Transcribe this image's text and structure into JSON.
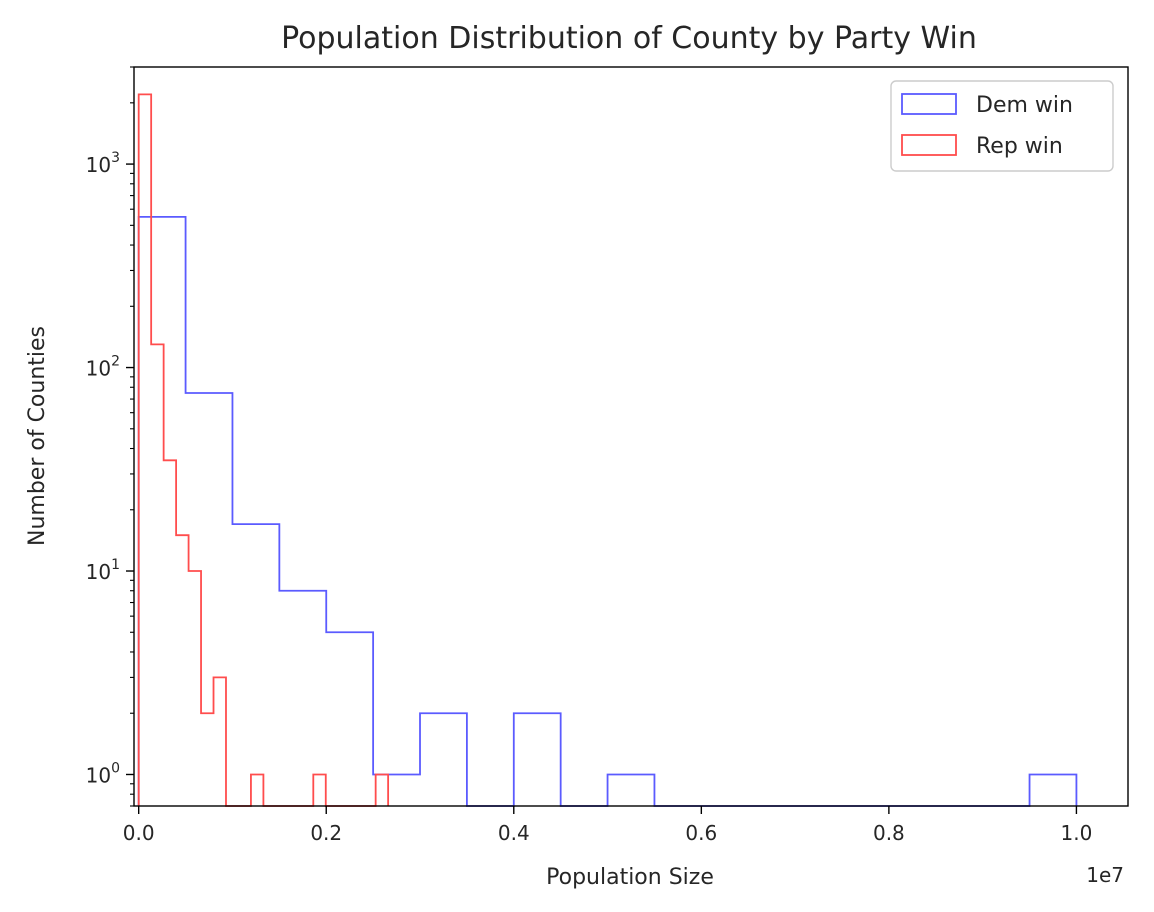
{
  "chart_data": {
    "type": "histogram",
    "title": "Population Distribution of County by Party Win",
    "xlabel": "Population Size",
    "ylabel": "Number of Counties",
    "x_offset_label": "1e7",
    "x_scale_factor": 10000000,
    "xlim": [
      -50000,
      10550000
    ],
    "ylim": [
      0.7,
      3000
    ],
    "yscale": "log",
    "grid": false,
    "legend_position": "top-right",
    "x_ticks": [
      0,
      2000000,
      4000000,
      6000000,
      8000000,
      10000000
    ],
    "x_tick_labels": [
      "0.0",
      "0.2",
      "0.4",
      "0.6",
      "0.8",
      "1.0"
    ],
    "y_ticks": [
      {
        "value": 1,
        "base": "10",
        "exp": "0"
      },
      {
        "value": 10,
        "base": "10",
        "exp": "1"
      },
      {
        "value": 100,
        "base": "10",
        "exp": "2"
      },
      {
        "value": 1000,
        "base": "10",
        "exp": "3"
      }
    ],
    "series": [
      {
        "name": "Dem win",
        "color": "#5b5bff",
        "bin_edges": [
          0,
          500000,
          1000000,
          1500000,
          2000000,
          2500000,
          3000000,
          3500000,
          4000000,
          4500000,
          5000000,
          5500000,
          6000000,
          6500000,
          7000000,
          7500000,
          8000000,
          8500000,
          9000000,
          9500000,
          10000000
        ],
        "counts": [
          550,
          75,
          17,
          8,
          5,
          1,
          2,
          0,
          2,
          0,
          1,
          0,
          0,
          0,
          0,
          0,
          0,
          0,
          0,
          1
        ]
      },
      {
        "name": "Rep win",
        "color": "#ff4d4d",
        "bin_edges": [
          0,
          133000,
          266000,
          399000,
          532000,
          665000,
          798000,
          931000,
          1064000,
          1197000,
          1330000,
          1463000,
          1596000,
          1729000,
          1862000,
          1995000,
          2128000,
          2261000,
          2394000,
          2527000,
          2660000
        ],
        "counts": [
          2200,
          130,
          35,
          15,
          10,
          2,
          3,
          0,
          0,
          1,
          0,
          0,
          0,
          0,
          1,
          0,
          0,
          0,
          0,
          1
        ]
      }
    ]
  }
}
